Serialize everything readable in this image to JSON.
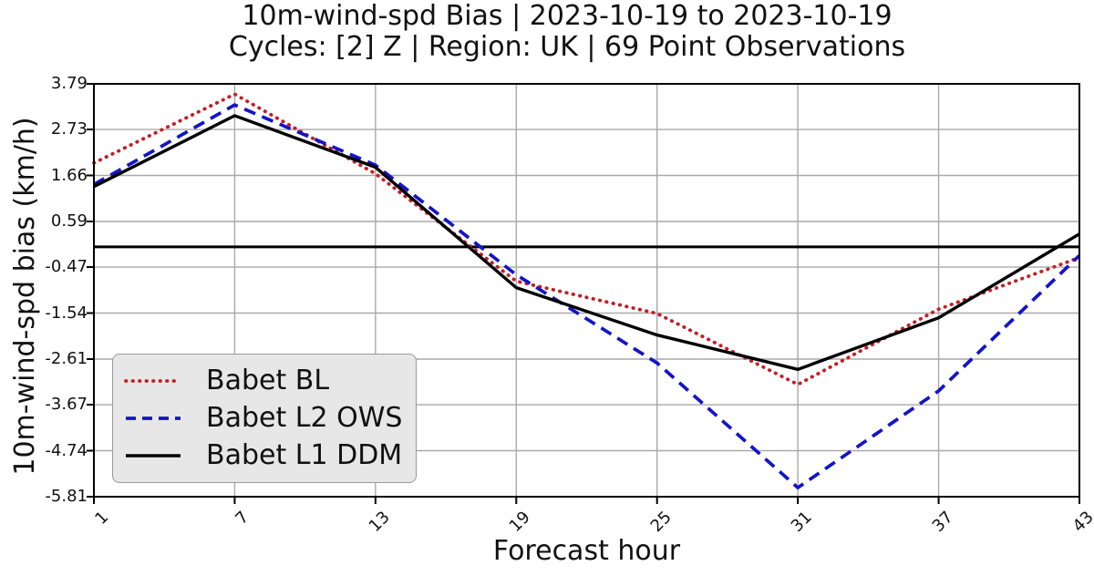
{
  "chart_data": {
    "type": "line",
    "title_lines": [
      "10m-wind-spd Bias | 2023-10-19 to 2023-10-19",
      "Cycles: [2] Z | Region: UK | 69 Point Observations"
    ],
    "xlabel": "Forecast hour",
    "ylabel": "10m-wind-spd bias (km/h)",
    "x": [
      1,
      7,
      13,
      19,
      25,
      31,
      37,
      43
    ],
    "xtick_labels": [
      "1",
      "7",
      "13",
      "19",
      "25",
      "31",
      "37",
      "43"
    ],
    "yticks": [
      3.79,
      2.73,
      1.66,
      0.59,
      -0.47,
      -1.54,
      -2.61,
      -3.67,
      -4.74,
      -5.81
    ],
    "ytick_labels": [
      "3.79",
      "2.73",
      "1.66",
      "0.59",
      "-0.47",
      "-1.54",
      "-2.61",
      "-3.67",
      "-4.74",
      "-5.81"
    ],
    "xlim": [
      1,
      43
    ],
    "ylim": [
      -5.81,
      3.79
    ],
    "grid": true,
    "grid_color": "#a9a9a9",
    "zero_line": 0,
    "zero_line_color": "#000000",
    "legend_position": "lower left",
    "series": [
      {
        "name": "Babet BL",
        "color": "#c41e24",
        "line_style": "dotted",
        "values": [
          1.95,
          3.55,
          1.7,
          -0.8,
          -1.55,
          -3.2,
          -1.45,
          -0.25
        ]
      },
      {
        "name": "Babet L2 OWS",
        "color": "#1414c8",
        "line_style": "dashed",
        "values": [
          1.45,
          3.3,
          1.9,
          -0.65,
          -2.7,
          -5.6,
          -3.35,
          -0.2
        ]
      },
      {
        "name": "Babet L1 DDM",
        "color": "#000000",
        "line_style": "solid",
        "values": [
          1.4,
          3.05,
          1.85,
          -0.95,
          -2.05,
          -2.85,
          -1.65,
          0.3
        ]
      }
    ]
  }
}
